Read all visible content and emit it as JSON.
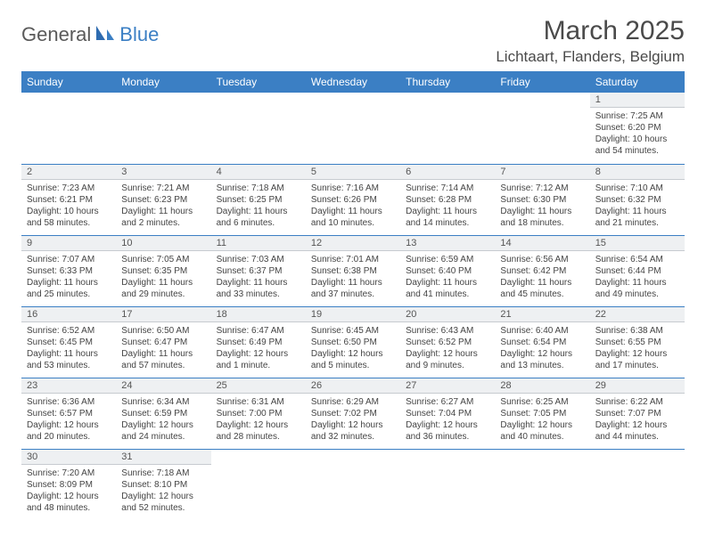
{
  "logo": {
    "word1": "General",
    "word2": "Blue",
    "icon_color": "#3b7fc4"
  },
  "title": "March 2025",
  "subtitle": "Lichtaart, Flanders, Belgium",
  "header_bg": "#3b7fc4",
  "daynum_bg": "#eef0f2",
  "border_color": "#3b7fc4",
  "day_headers": [
    "Sunday",
    "Monday",
    "Tuesday",
    "Wednesday",
    "Thursday",
    "Friday",
    "Saturday"
  ],
  "weeks": [
    [
      {
        "empty": true
      },
      {
        "empty": true
      },
      {
        "empty": true
      },
      {
        "empty": true
      },
      {
        "empty": true
      },
      {
        "empty": true
      },
      {
        "num": "1",
        "sunrise": "Sunrise: 7:25 AM",
        "sunset": "Sunset: 6:20 PM",
        "daylight": "Daylight: 10 hours and 54 minutes."
      }
    ],
    [
      {
        "num": "2",
        "sunrise": "Sunrise: 7:23 AM",
        "sunset": "Sunset: 6:21 PM",
        "daylight": "Daylight: 10 hours and 58 minutes."
      },
      {
        "num": "3",
        "sunrise": "Sunrise: 7:21 AM",
        "sunset": "Sunset: 6:23 PM",
        "daylight": "Daylight: 11 hours and 2 minutes."
      },
      {
        "num": "4",
        "sunrise": "Sunrise: 7:18 AM",
        "sunset": "Sunset: 6:25 PM",
        "daylight": "Daylight: 11 hours and 6 minutes."
      },
      {
        "num": "5",
        "sunrise": "Sunrise: 7:16 AM",
        "sunset": "Sunset: 6:26 PM",
        "daylight": "Daylight: 11 hours and 10 minutes."
      },
      {
        "num": "6",
        "sunrise": "Sunrise: 7:14 AM",
        "sunset": "Sunset: 6:28 PM",
        "daylight": "Daylight: 11 hours and 14 minutes."
      },
      {
        "num": "7",
        "sunrise": "Sunrise: 7:12 AM",
        "sunset": "Sunset: 6:30 PM",
        "daylight": "Daylight: 11 hours and 18 minutes."
      },
      {
        "num": "8",
        "sunrise": "Sunrise: 7:10 AM",
        "sunset": "Sunset: 6:32 PM",
        "daylight": "Daylight: 11 hours and 21 minutes."
      }
    ],
    [
      {
        "num": "9",
        "sunrise": "Sunrise: 7:07 AM",
        "sunset": "Sunset: 6:33 PM",
        "daylight": "Daylight: 11 hours and 25 minutes."
      },
      {
        "num": "10",
        "sunrise": "Sunrise: 7:05 AM",
        "sunset": "Sunset: 6:35 PM",
        "daylight": "Daylight: 11 hours and 29 minutes."
      },
      {
        "num": "11",
        "sunrise": "Sunrise: 7:03 AM",
        "sunset": "Sunset: 6:37 PM",
        "daylight": "Daylight: 11 hours and 33 minutes."
      },
      {
        "num": "12",
        "sunrise": "Sunrise: 7:01 AM",
        "sunset": "Sunset: 6:38 PM",
        "daylight": "Daylight: 11 hours and 37 minutes."
      },
      {
        "num": "13",
        "sunrise": "Sunrise: 6:59 AM",
        "sunset": "Sunset: 6:40 PM",
        "daylight": "Daylight: 11 hours and 41 minutes."
      },
      {
        "num": "14",
        "sunrise": "Sunrise: 6:56 AM",
        "sunset": "Sunset: 6:42 PM",
        "daylight": "Daylight: 11 hours and 45 minutes."
      },
      {
        "num": "15",
        "sunrise": "Sunrise: 6:54 AM",
        "sunset": "Sunset: 6:44 PM",
        "daylight": "Daylight: 11 hours and 49 minutes."
      }
    ],
    [
      {
        "num": "16",
        "sunrise": "Sunrise: 6:52 AM",
        "sunset": "Sunset: 6:45 PM",
        "daylight": "Daylight: 11 hours and 53 minutes."
      },
      {
        "num": "17",
        "sunrise": "Sunrise: 6:50 AM",
        "sunset": "Sunset: 6:47 PM",
        "daylight": "Daylight: 11 hours and 57 minutes."
      },
      {
        "num": "18",
        "sunrise": "Sunrise: 6:47 AM",
        "sunset": "Sunset: 6:49 PM",
        "daylight": "Daylight: 12 hours and 1 minute."
      },
      {
        "num": "19",
        "sunrise": "Sunrise: 6:45 AM",
        "sunset": "Sunset: 6:50 PM",
        "daylight": "Daylight: 12 hours and 5 minutes."
      },
      {
        "num": "20",
        "sunrise": "Sunrise: 6:43 AM",
        "sunset": "Sunset: 6:52 PM",
        "daylight": "Daylight: 12 hours and 9 minutes."
      },
      {
        "num": "21",
        "sunrise": "Sunrise: 6:40 AM",
        "sunset": "Sunset: 6:54 PM",
        "daylight": "Daylight: 12 hours and 13 minutes."
      },
      {
        "num": "22",
        "sunrise": "Sunrise: 6:38 AM",
        "sunset": "Sunset: 6:55 PM",
        "daylight": "Daylight: 12 hours and 17 minutes."
      }
    ],
    [
      {
        "num": "23",
        "sunrise": "Sunrise: 6:36 AM",
        "sunset": "Sunset: 6:57 PM",
        "daylight": "Daylight: 12 hours and 20 minutes."
      },
      {
        "num": "24",
        "sunrise": "Sunrise: 6:34 AM",
        "sunset": "Sunset: 6:59 PM",
        "daylight": "Daylight: 12 hours and 24 minutes."
      },
      {
        "num": "25",
        "sunrise": "Sunrise: 6:31 AM",
        "sunset": "Sunset: 7:00 PM",
        "daylight": "Daylight: 12 hours and 28 minutes."
      },
      {
        "num": "26",
        "sunrise": "Sunrise: 6:29 AM",
        "sunset": "Sunset: 7:02 PM",
        "daylight": "Daylight: 12 hours and 32 minutes."
      },
      {
        "num": "27",
        "sunrise": "Sunrise: 6:27 AM",
        "sunset": "Sunset: 7:04 PM",
        "daylight": "Daylight: 12 hours and 36 minutes."
      },
      {
        "num": "28",
        "sunrise": "Sunrise: 6:25 AM",
        "sunset": "Sunset: 7:05 PM",
        "daylight": "Daylight: 12 hours and 40 minutes."
      },
      {
        "num": "29",
        "sunrise": "Sunrise: 6:22 AM",
        "sunset": "Sunset: 7:07 PM",
        "daylight": "Daylight: 12 hours and 44 minutes."
      }
    ],
    [
      {
        "num": "30",
        "sunrise": "Sunrise: 7:20 AM",
        "sunset": "Sunset: 8:09 PM",
        "daylight": "Daylight: 12 hours and 48 minutes."
      },
      {
        "num": "31",
        "sunrise": "Sunrise: 7:18 AM",
        "sunset": "Sunset: 8:10 PM",
        "daylight": "Daylight: 12 hours and 52 minutes."
      },
      {
        "empty": true
      },
      {
        "empty": true
      },
      {
        "empty": true
      },
      {
        "empty": true
      },
      {
        "empty": true
      }
    ]
  ]
}
